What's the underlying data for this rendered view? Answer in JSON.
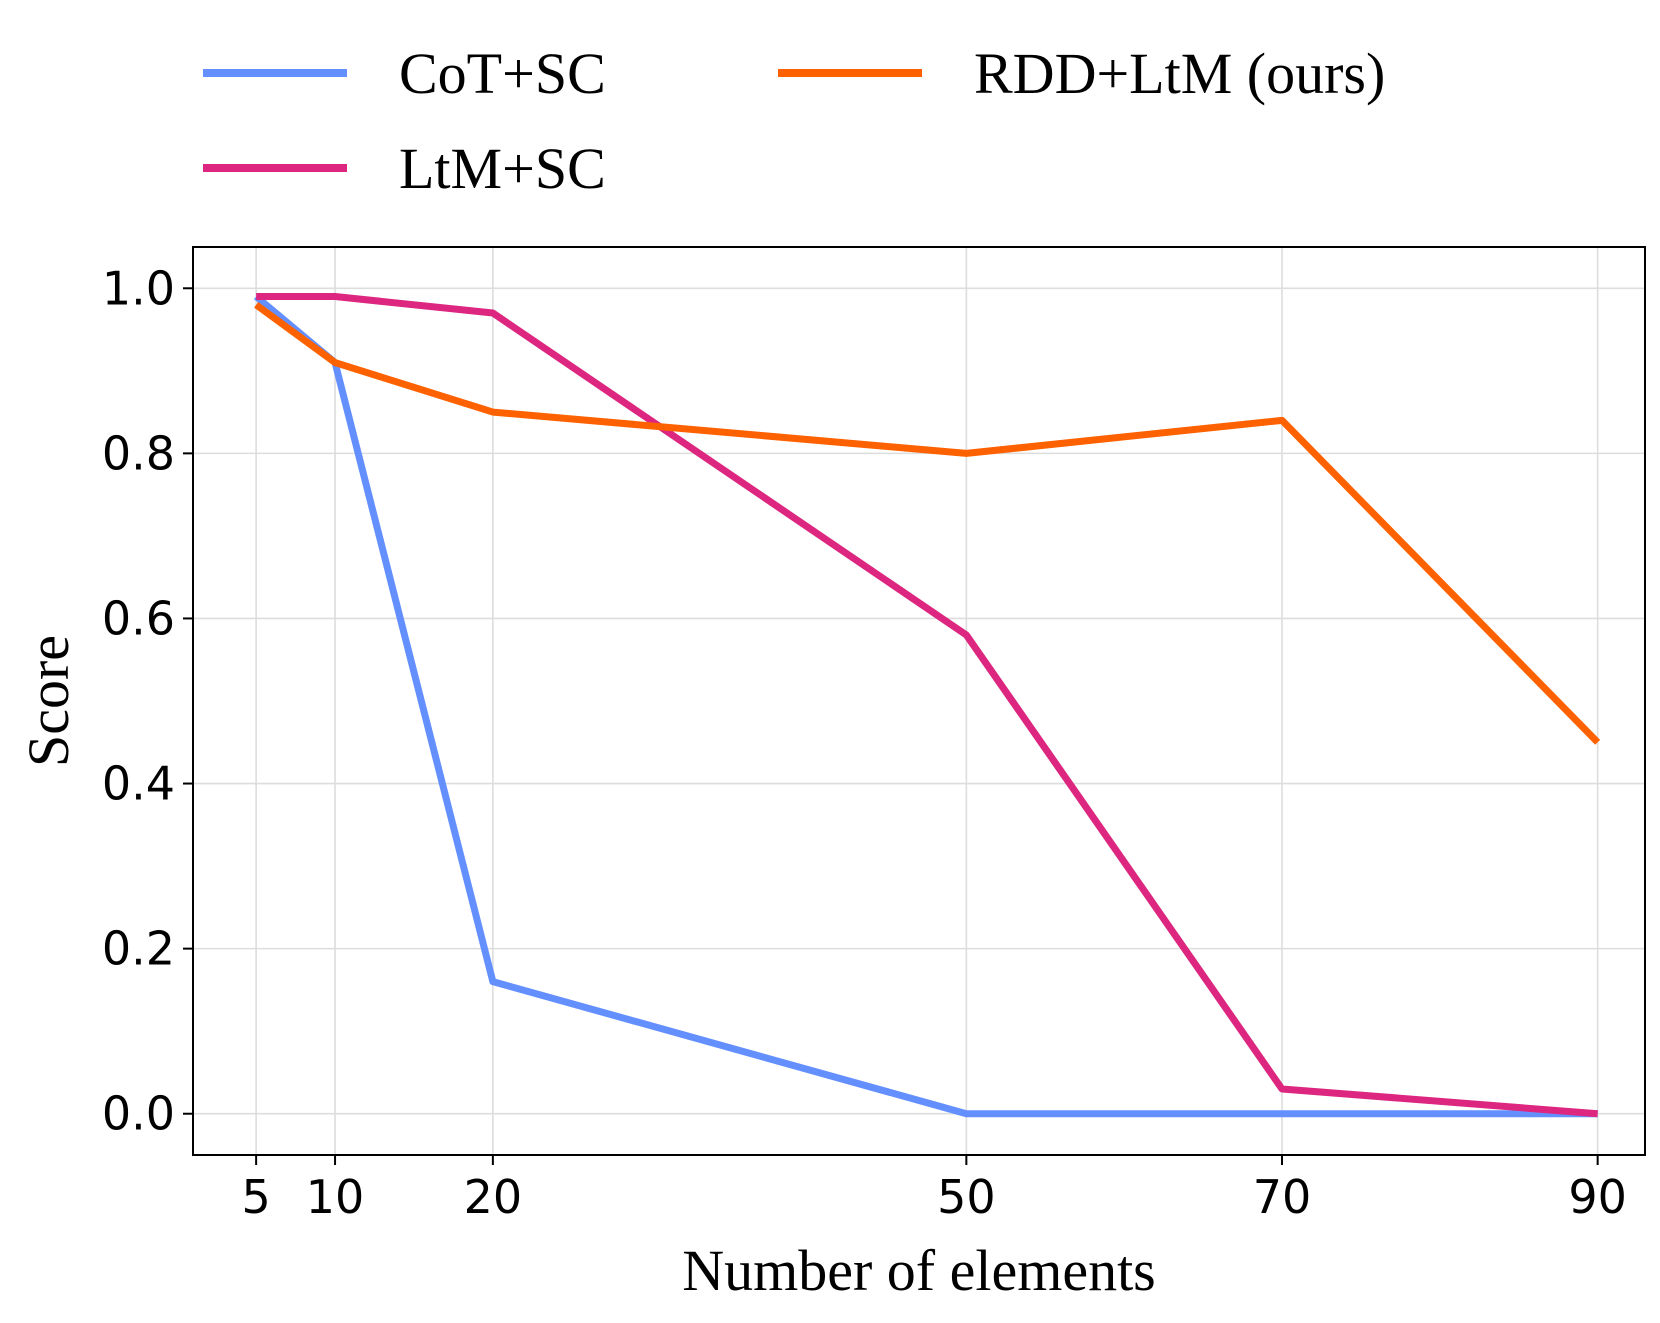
{
  "chart_data": {
    "type": "line",
    "title": "",
    "xlabel": "Number of elements",
    "ylabel": "Score",
    "x": [
      5,
      10,
      20,
      50,
      70,
      90
    ],
    "x_tick_labels": [
      "5",
      "10",
      "20",
      "50",
      "70",
      "90"
    ],
    "xlim": [
      1,
      93
    ],
    "ylim": [
      -0.05,
      1.05
    ],
    "y_ticks": [
      0.0,
      0.2,
      0.4,
      0.6,
      0.8,
      1.0
    ],
    "y_tick_labels": [
      "0.0",
      "0.2",
      "0.4",
      "0.6",
      "0.8",
      "1.0"
    ],
    "grid": true,
    "legend_position": "top",
    "series": [
      {
        "name": "CoT+SC",
        "color": "#648fff",
        "values": [
          0.99,
          0.91,
          0.16,
          0.0,
          0.0,
          0.0
        ]
      },
      {
        "name": "LtM+SC",
        "color": "#dc267f",
        "values": [
          0.99,
          0.99,
          0.97,
          0.58,
          0.03,
          0.0
        ]
      },
      {
        "name": "RDD+LtM (ours)",
        "color": "#fe6100",
        "values": [
          0.98,
          0.91,
          0.85,
          0.8,
          0.84,
          0.45
        ]
      }
    ]
  }
}
